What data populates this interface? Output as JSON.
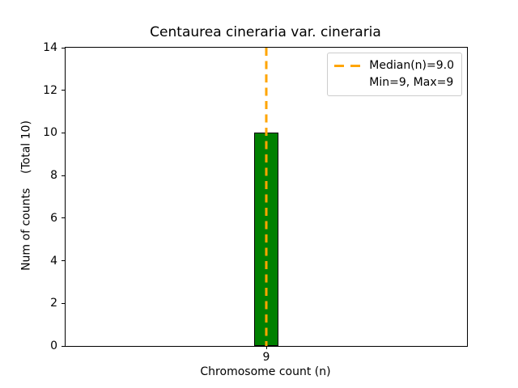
{
  "chart_data": {
    "type": "bar",
    "title": "Centaurea cineraria var. cineraria",
    "xlabel": "Chromosome count (n)",
    "ylabel": "Num of counts    (Total 10)",
    "categories": [
      "9"
    ],
    "values": [
      10
    ],
    "ylim": [
      0,
      14
    ],
    "yticks": [
      0,
      2,
      4,
      6,
      8,
      10,
      12,
      14
    ],
    "grid": false,
    "bar_color": "#008000",
    "bar_edge_color": "#000000",
    "median_line": {
      "x": 9,
      "style": "dashed",
      "color": "#FFA500"
    },
    "legend": {
      "position": "upper right",
      "entries": [
        {
          "label": "Median(n)=9.0",
          "marker": "dashed-line",
          "color": "#FFA500"
        },
        {
          "label": "Min=9, Max=9",
          "marker": "none"
        }
      ]
    }
  }
}
